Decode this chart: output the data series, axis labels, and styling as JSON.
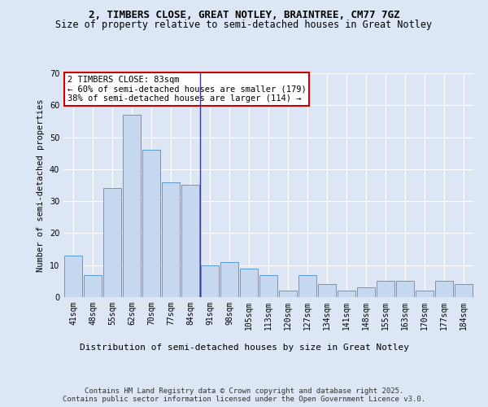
{
  "title1": "2, TIMBERS CLOSE, GREAT NOTLEY, BRAINTREE, CM77 7GZ",
  "title2": "Size of property relative to semi-detached houses in Great Notley",
  "xlabel": "Distribution of semi-detached houses by size in Great Notley",
  "ylabel": "Number of semi-detached properties",
  "categories": [
    "41sqm",
    "48sqm",
    "55sqm",
    "62sqm",
    "70sqm",
    "77sqm",
    "84sqm",
    "91sqm",
    "98sqm",
    "105sqm",
    "113sqm",
    "120sqm",
    "127sqm",
    "134sqm",
    "141sqm",
    "148sqm",
    "155sqm",
    "163sqm",
    "170sqm",
    "177sqm",
    "184sqm"
  ],
  "values": [
    13,
    7,
    34,
    57,
    46,
    36,
    35,
    10,
    11,
    9,
    7,
    2,
    7,
    4,
    2,
    3,
    5,
    5,
    2,
    5,
    4
  ],
  "bar_color": "#c5d8f0",
  "bar_edge_color": "#5b9bd5",
  "vline_x": 6.5,
  "vline_color": "#3a3a9e",
  "annotation_text": "2 TIMBERS CLOSE: 83sqm\n← 60% of semi-detached houses are smaller (179)\n38% of semi-detached houses are larger (114) →",
  "annotation_box_color": "#ffffff",
  "annotation_box_edge_color": "#cc0000",
  "ylim": [
    0,
    70
  ],
  "yticks": [
    0,
    10,
    20,
    30,
    40,
    50,
    60,
    70
  ],
  "background_color": "#dce6f5",
  "plot_background_color": "#dce6f5",
  "footer": "Contains HM Land Registry data © Crown copyright and database right 2025.\nContains public sector information licensed under the Open Government Licence v3.0.",
  "title1_fontsize": 9,
  "title2_fontsize": 8.5,
  "xlabel_fontsize": 8,
  "ylabel_fontsize": 7.5,
  "tick_fontsize": 7,
  "annotation_fontsize": 7.5,
  "footer_fontsize": 6.5
}
